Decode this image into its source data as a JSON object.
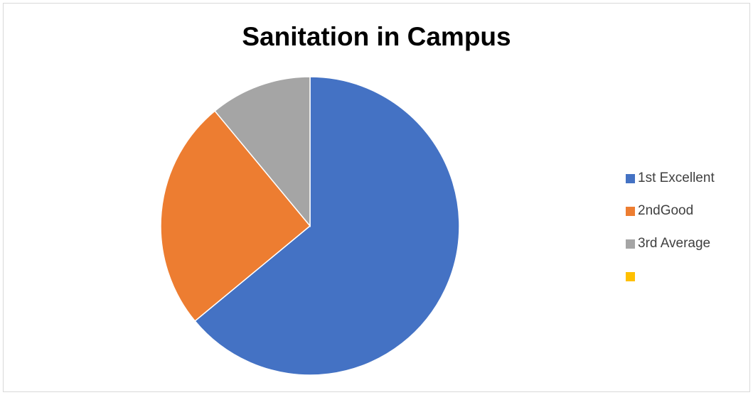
{
  "chart_data": {
    "type": "pie",
    "title": "Sanitation in Campus",
    "categories": [
      "1st Excellent",
      "2ndGood",
      "3rd Average",
      ""
    ],
    "values": [
      64,
      25,
      11,
      0
    ],
    "colors": [
      "#4472c4",
      "#ed7d31",
      "#a5a5a5",
      "#ffc000"
    ],
    "start_angle_deg": 0,
    "direction": "clockwise",
    "legend_position": "right",
    "grid": false
  }
}
